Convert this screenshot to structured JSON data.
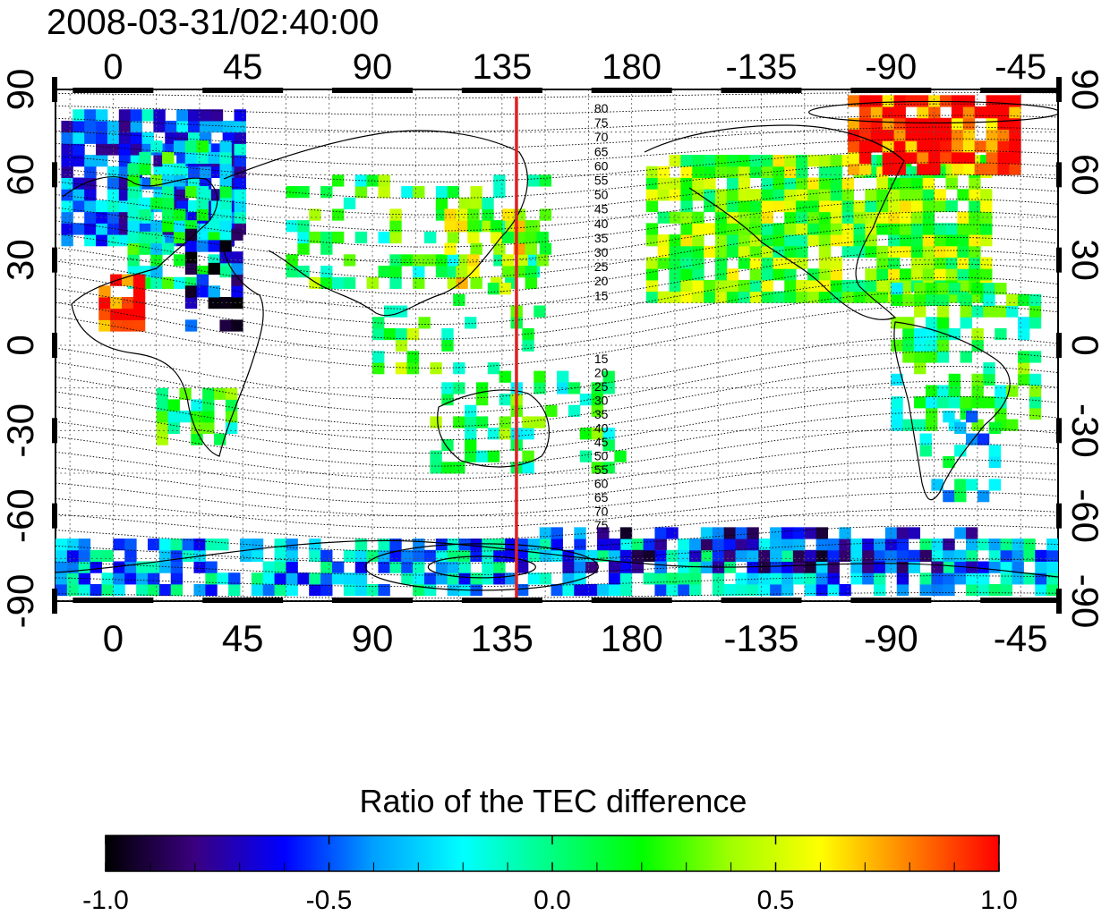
{
  "title": "2008-03-31/02:40:00",
  "map": {
    "lon_ticks_top": [
      "0",
      "45",
      "90",
      "135",
      "180",
      "-135",
      "-90",
      "-45"
    ],
    "lon_ticks_bottom": [
      "0",
      "45",
      "90",
      "135",
      "180",
      "-135",
      "-90",
      "-45"
    ],
    "lat_ticks_left": [
      "90",
      "60",
      "30",
      "0",
      "-30",
      "-60",
      "-90"
    ],
    "lat_ticks_right": [
      "90",
      "60",
      "30",
      "0",
      "-30",
      "-60",
      "-90"
    ],
    "lon_range": [
      -20,
      328
    ],
    "lat_range": [
      -90,
      90
    ],
    "grid": true,
    "meridian_marker": {
      "lon": 140,
      "color": "#e02020"
    },
    "contour_labels_north": [
      "80",
      "75",
      "70",
      "65",
      "60",
      "55",
      "50",
      "45",
      "40",
      "35",
      "30",
      "25",
      "20",
      "15"
    ],
    "contour_labels_south": [
      "15",
      "20",
      "25",
      "30",
      "35",
      "40",
      "45",
      "50",
      "55",
      "60",
      "65",
      "70",
      "75"
    ]
  },
  "colorbar": {
    "title": "Ratio of the TEC difference",
    "ticks": [
      "-1.0",
      "-0.5",
      "0.0",
      "0.5",
      "1.0"
    ],
    "range": [
      -1.0,
      1.0
    ],
    "colors": [
      "#000000",
      "#3a0080",
      "#0000ff",
      "#00a0ff",
      "#00ffff",
      "#00ff80",
      "#00ff00",
      "#a0ff00",
      "#ffff00",
      "#ff8000",
      "#ff0000"
    ]
  }
}
